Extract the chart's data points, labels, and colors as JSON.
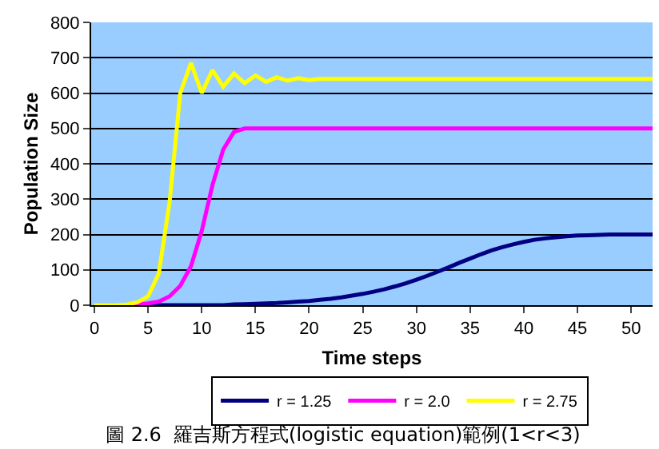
{
  "chart_data": {
    "type": "line",
    "xlabel": "Time steps",
    "ylabel": "Population Size",
    "x": [
      0,
      1,
      2,
      3,
      4,
      5,
      6,
      7,
      8,
      9,
      10,
      11,
      12,
      13,
      14,
      15,
      16,
      17,
      18,
      19,
      20,
      21,
      22,
      23,
      24,
      25,
      26,
      27,
      28,
      29,
      30,
      31,
      32,
      33,
      34,
      35,
      36,
      37,
      38,
      39,
      40,
      41,
      42,
      43,
      44,
      45,
      46,
      47,
      48,
      49,
      50,
      51,
      52
    ],
    "series": [
      {
        "name": "r = 1.25",
        "color": "#000080",
        "values": [
          null,
          null,
          null,
          null,
          0,
          0,
          0,
          0,
          0,
          0,
          0,
          0,
          0,
          2,
          3,
          4,
          5,
          6,
          8,
          10,
          12,
          15,
          18,
          22,
          27,
          32,
          38,
          45,
          53,
          62,
          72,
          83,
          95,
          107,
          120,
          132,
          144,
          155,
          164,
          172,
          179,
          185,
          189,
          192,
          195,
          197,
          198,
          199,
          200,
          200,
          200,
          200,
          200
        ]
      },
      {
        "name": "r = 2.0",
        "color": "#ff00ff",
        "values": [
          null,
          null,
          null,
          0,
          2,
          5,
          10,
          25,
          55,
          110,
          210,
          340,
          440,
          490,
          500,
          500,
          500,
          500,
          500,
          500,
          500,
          500,
          500,
          500,
          500,
          500,
          500,
          500,
          500,
          500,
          500,
          500,
          500,
          500,
          500,
          500,
          500,
          500,
          500,
          500,
          500,
          500,
          500,
          500,
          500,
          500,
          500,
          500,
          500,
          500,
          500,
          500,
          500
        ]
      },
      {
        "name": "r = 2.75",
        "color": "#ffff00",
        "values": [
          0,
          0,
          0,
          2,
          8,
          25,
          90,
          290,
          600,
          685,
          600,
          665,
          618,
          655,
          628,
          650,
          632,
          645,
          635,
          642,
          637,
          640,
          640,
          640,
          640,
          640,
          640,
          640,
          640,
          640,
          640,
          640,
          640,
          640,
          640,
          640,
          640,
          640,
          640,
          640,
          640,
          640,
          640,
          640,
          640,
          640,
          640,
          640,
          640,
          640,
          640,
          640,
          640
        ]
      }
    ],
    "xlim": [
      -0.3,
      52
    ],
    "xticks": [
      0,
      5,
      10,
      15,
      20,
      25,
      30,
      35,
      40,
      45,
      50
    ],
    "ylim": [
      0,
      800
    ],
    "yticks": [
      0,
      100,
      200,
      300,
      400,
      500,
      600,
      700,
      800
    ],
    "grid": "y",
    "legend": "bottom",
    "marker": "none",
    "line_style": "solid",
    "annotations": [
      "圖 2.6  羅吉斯方程式(logistic equation)範例(1<r<3)"
    ]
  }
}
